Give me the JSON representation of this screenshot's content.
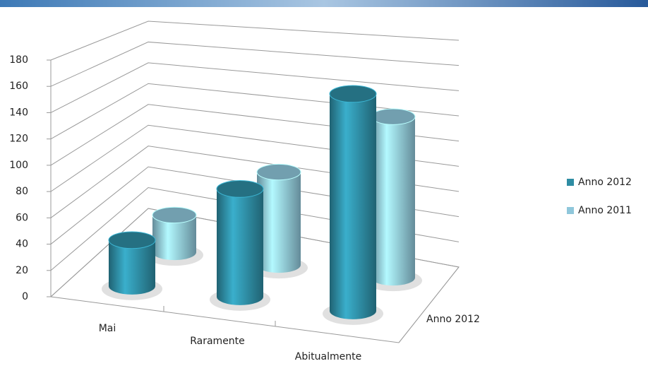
{
  "chart_data": {
    "type": "cylinder3d",
    "categories": [
      "Mai",
      "Raramente",
      "Abitualmente"
    ],
    "series": [
      {
        "name": "Anno 2012",
        "color": "#2e8ca3",
        "values": [
          35,
          82,
          165
        ]
      },
      {
        "name": "Anno 2011",
        "color": "#8fc7db",
        "values": [
          30,
          75,
          130
        ]
      }
    ],
    "series_axis_labels": [
      "Anno 2012"
    ],
    "ylim": [
      0,
      180
    ],
    "yticks": [
      0,
      20,
      40,
      60,
      80,
      100,
      120,
      140,
      160,
      180
    ],
    "grid": true,
    "legend": "right"
  }
}
